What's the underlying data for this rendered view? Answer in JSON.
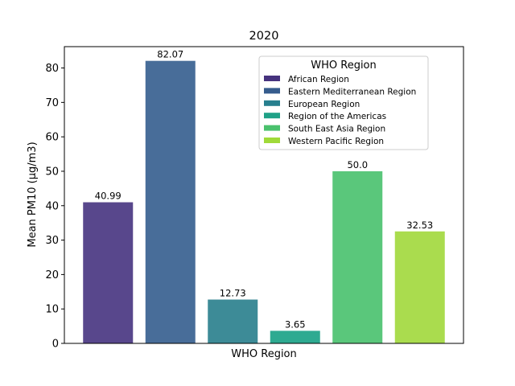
{
  "chart_data": {
    "type": "bar",
    "title": "2020",
    "xlabel": "WHO Region",
    "ylabel": "Mean PM10 (μg/m3)",
    "ylim": [
      0,
      86.2
    ],
    "yticks": [
      0,
      10,
      20,
      30,
      40,
      50,
      60,
      70,
      80
    ],
    "grid": false,
    "legend": {
      "title": "WHO Region",
      "placement": "upper-right"
    },
    "categories": [
      "African Region",
      "Eastern Mediterranean Region",
      "European Region",
      "Region of the Americas",
      "South East Asia Region",
      "Western Pacific Region"
    ],
    "values": [
      40.99,
      82.07,
      12.73,
      3.65,
      50.0,
      32.53
    ],
    "value_labels": [
      "40.99",
      "82.07",
      "12.73",
      "3.65",
      "50.0",
      "32.53"
    ],
    "colors": [
      "#58478c",
      "#486d99",
      "#3d8b97",
      "#2eaa91",
      "#5ac77b",
      "#aadc4e"
    ],
    "legend_colors": [
      "#46327e",
      "#365c8d",
      "#277f8e",
      "#1fa187",
      "#4ac16d",
      "#a0da39"
    ]
  }
}
